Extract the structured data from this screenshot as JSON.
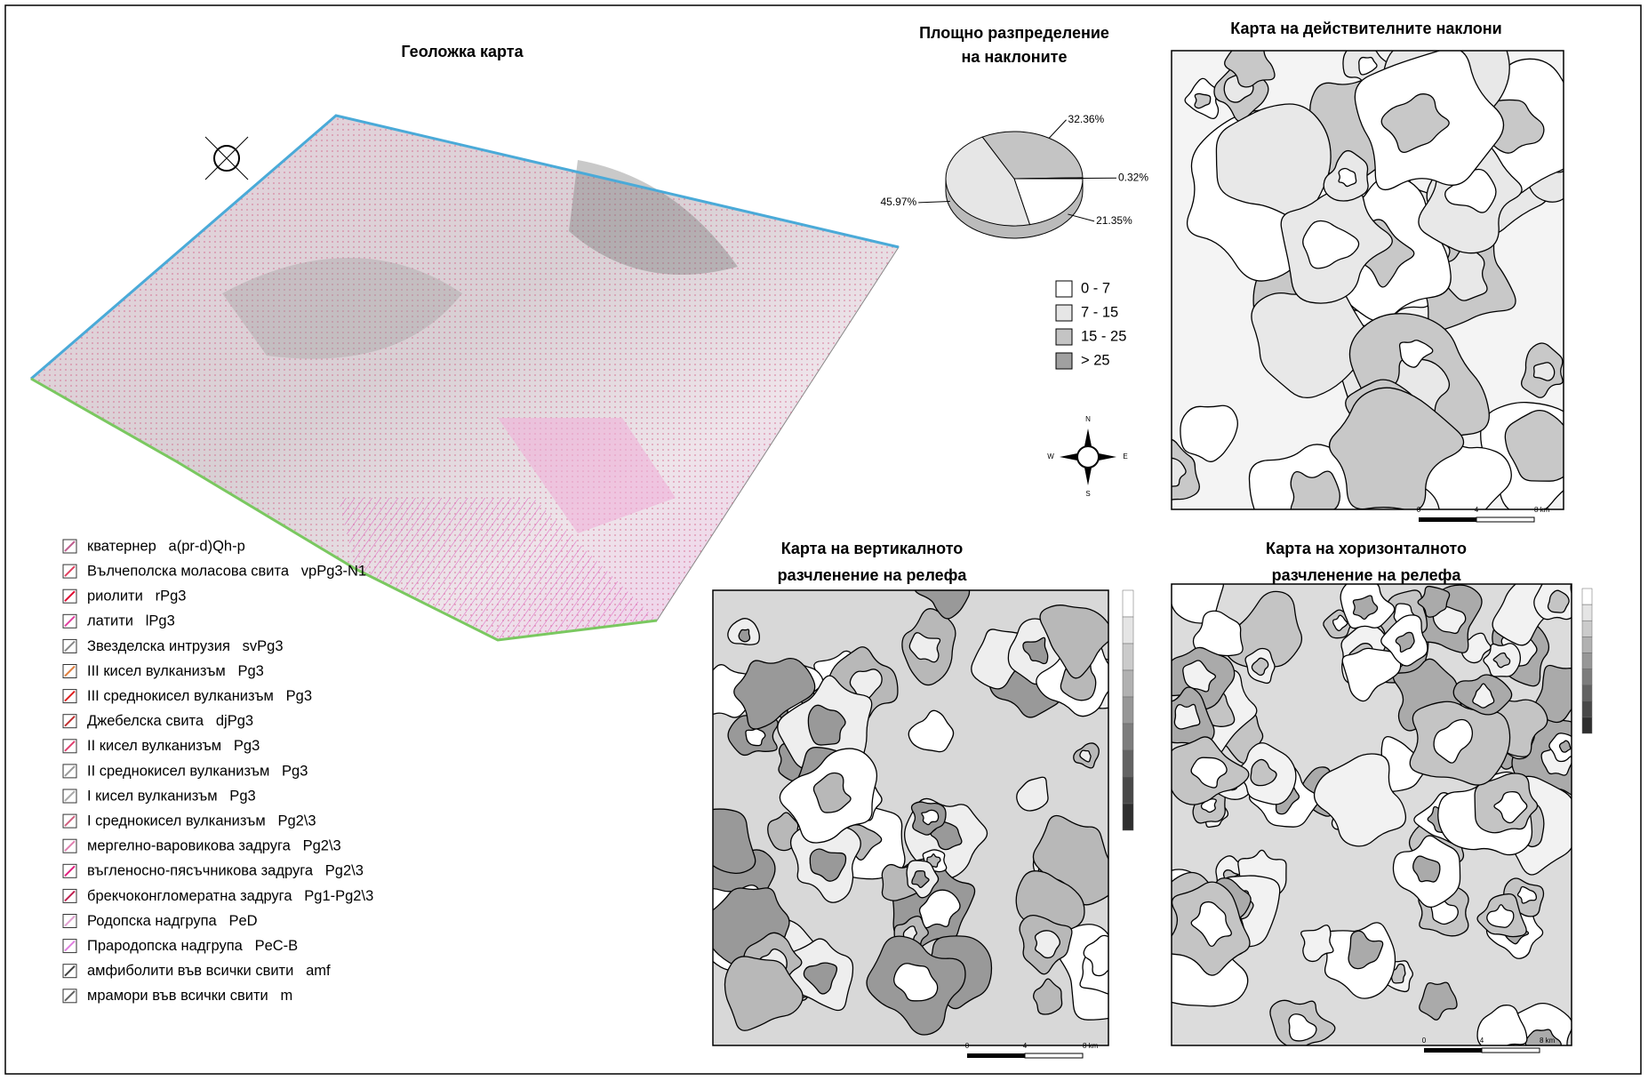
{
  "geological_map": {
    "title": "Геоложка карта",
    "legend": [
      "кватернер   a(pr-d)Qh-p",
      "Вълчеполска моласова свита   vpPg3-N1",
      "риолити   rPg3",
      "латити   lPg3",
      "Звезделска интрузия   svPg3",
      "III кисел вулканизъм   Pg3",
      "III среднокисел вулканизъм   Pg3",
      "Джебелска свита   djPg3",
      "II кисел вулканизъм   Pg3",
      "II среднокисел вулканизъм   Pg3",
      "I кисел вулканизъм   Pg3",
      "I среднокисел вулканизъм   Pg2\\3",
      "мергелно-варовикова задруга   Pg2\\3",
      "въгленосно-пясъчникова задруга   Pg2\\3",
      "брекчоконгломератна задруга   Pg1-Pg2\\3",
      "Родопска надгрупа   PeD",
      "Прародопска надгрупа   PeC-B",
      "амфиболити във всички свити   amf",
      "мрамори във всички свити   m"
    ]
  },
  "slope_distribution": {
    "title_lines": [
      "Площно разпределение",
      "на наклоните"
    ],
    "chart": {
      "type": "pie",
      "categories": [
        "0 - 7",
        "7 - 15",
        "15 - 25",
        "> 25"
      ],
      "values": [
        21.35,
        45.97,
        32.36,
        0.32
      ],
      "value_labels": [
        "21.35%",
        "45.97%",
        "32.36%",
        "0.32%"
      ],
      "colors": [
        "#ffffff",
        "#e6e6e6",
        "#c4c4c4",
        "#a0a0a0"
      ]
    }
  },
  "compass": {
    "north": "N",
    "east": "E",
    "south": "S",
    "west": "W"
  },
  "maps": [
    {
      "title_lines": [
        "Карта на действителните наклони"
      ],
      "scale": [
        "0",
        "4",
        "8 km"
      ]
    },
    {
      "title_lines": [
        "Карта на вертикалното",
        "разчленение на релефа"
      ],
      "scale": [
        "0",
        "4",
        "8 km"
      ]
    },
    {
      "title_lines": [
        "Карта на хоризонталното",
        "разчленение на релефа"
      ],
      "scale": [
        "0",
        "4",
        "8 km"
      ]
    }
  ]
}
